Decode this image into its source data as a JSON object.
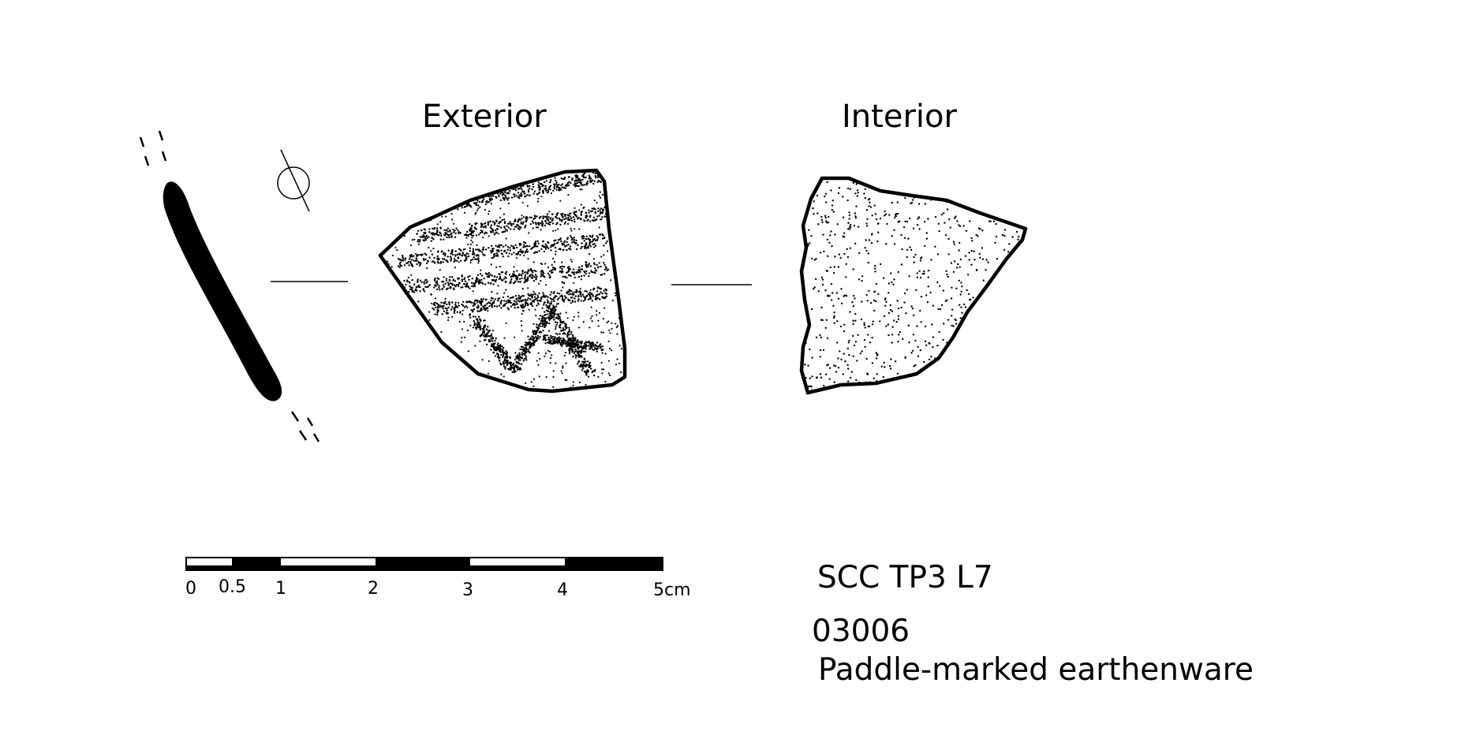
{
  "labels": {
    "exterior": "Exterior",
    "interior": "Interior"
  },
  "scale_bar": {
    "ticks": [
      "0",
      "0.5",
      "1",
      "2",
      "3",
      "4",
      "5cm"
    ]
  },
  "specimen": {
    "context": "SCC TP3 L7",
    "number": "03006",
    "description": "Paddle-marked earthenware"
  },
  "colors": {
    "ink": "#000000",
    "paper": "#ffffff"
  }
}
